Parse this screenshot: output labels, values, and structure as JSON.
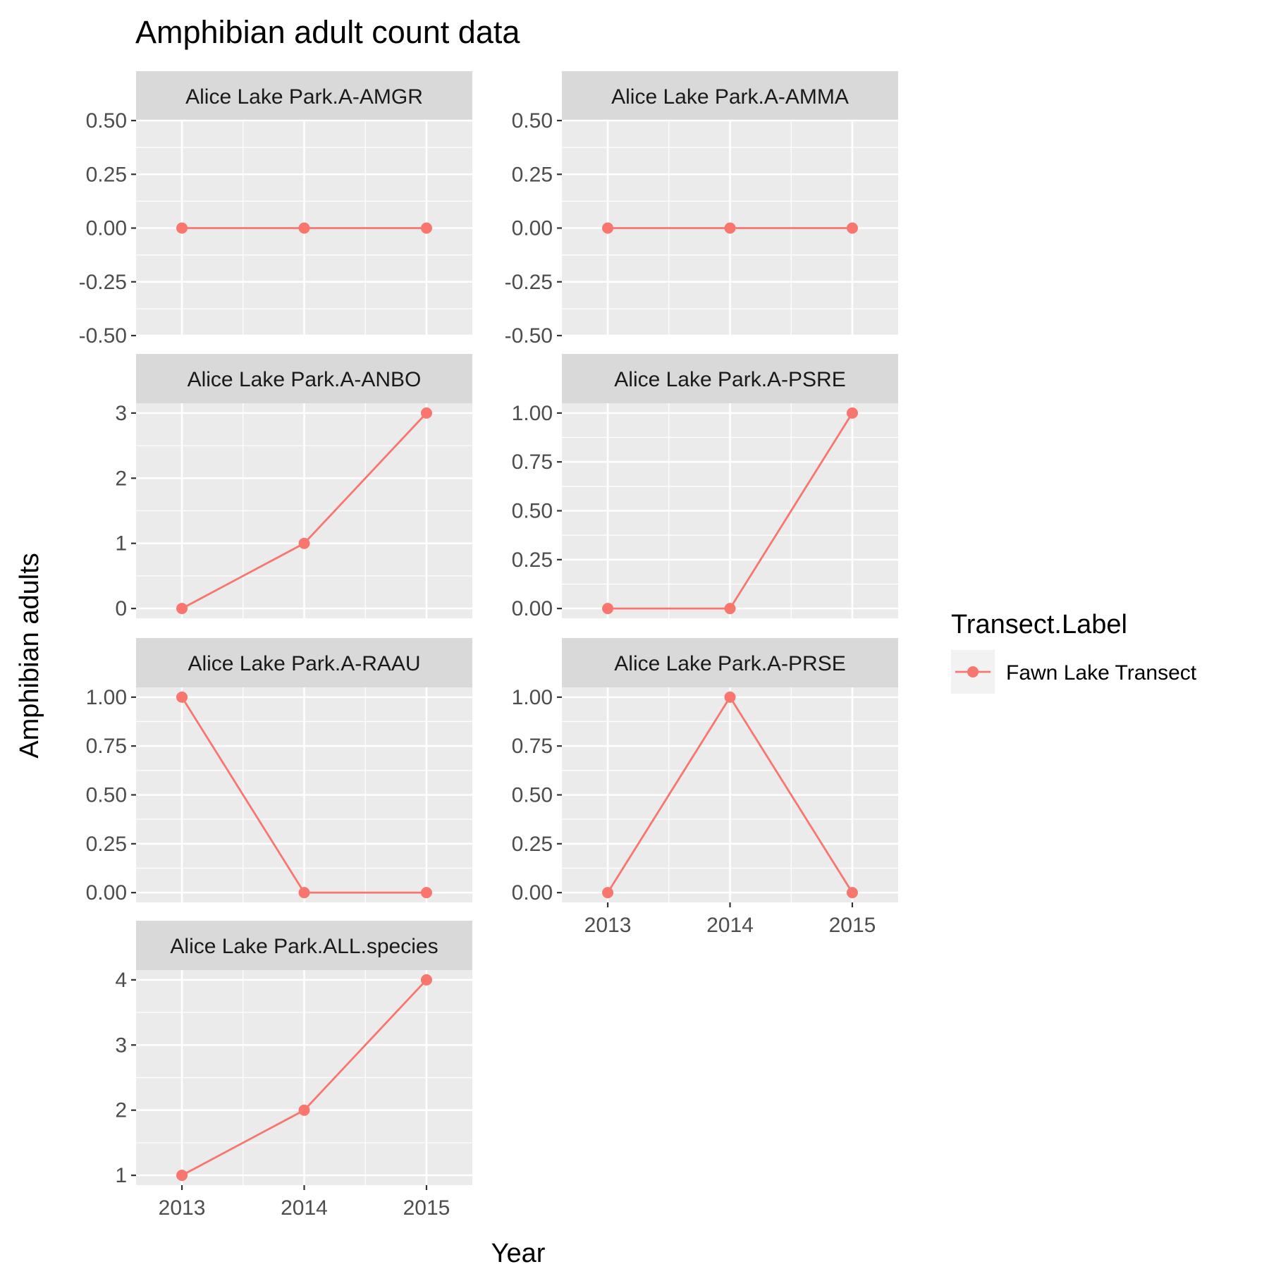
{
  "title": "Amphibian adult count data",
  "xlabel": "Year",
  "ylabel": "Amphibian adults",
  "legend": {
    "title": "Transect.Label",
    "entries": [
      {
        "label": "Fawn Lake Transect",
        "color": "#F8766D"
      }
    ],
    "position": "right"
  },
  "chart_data": {
    "type": "line",
    "facet_layout": {
      "columns": 2,
      "rows": 4
    },
    "x": [
      2013,
      2014,
      2015
    ],
    "x_tick_labels": [
      "2013",
      "2014",
      "2015"
    ],
    "series_name": "Fawn Lake Transect",
    "series_color": "#F8766D",
    "grid": true,
    "panels": [
      {
        "strip": "Alice Lake Park.A-AMGR",
        "values": [
          0,
          0,
          0
        ],
        "ylim": [
          -0.5,
          0.5
        ],
        "y_ticks": [
          -0.5,
          -0.25,
          0,
          0.25,
          0.5
        ],
        "y_tick_labels": [
          "-0.50",
          "-0.25",
          "0.00",
          "0.25",
          "0.50"
        ]
      },
      {
        "strip": "Alice Lake Park.A-AMMA",
        "values": [
          0,
          0,
          0
        ],
        "ylim": [
          -0.5,
          0.5
        ],
        "y_ticks": [
          -0.5,
          -0.25,
          0,
          0.25,
          0.5
        ],
        "y_tick_labels": [
          "-0.50",
          "-0.25",
          "0.00",
          "0.25",
          "0.50"
        ]
      },
      {
        "strip": "Alice Lake Park.A-ANBO",
        "values": [
          0,
          1,
          3
        ],
        "ylim": [
          -0.15,
          3.15
        ],
        "y_ticks": [
          0,
          1,
          2,
          3
        ],
        "y_tick_labels": [
          "0",
          "1",
          "2",
          "3"
        ]
      },
      {
        "strip": "Alice Lake Park.A-PSRE",
        "values": [
          0,
          0,
          1
        ],
        "ylim": [
          -0.05,
          1.05
        ],
        "y_ticks": [
          0,
          0.25,
          0.5,
          0.75,
          1
        ],
        "y_tick_labels": [
          "0.00",
          "0.25",
          "0.50",
          "0.75",
          "1.00"
        ]
      },
      {
        "strip": "Alice Lake Park.A-RAAU",
        "values": [
          1,
          0,
          0
        ],
        "ylim": [
          -0.05,
          1.05
        ],
        "y_ticks": [
          0,
          0.25,
          0.5,
          0.75,
          1
        ],
        "y_tick_labels": [
          "0.00",
          "0.25",
          "0.50",
          "0.75",
          "1.00"
        ]
      },
      {
        "strip": "Alice Lake Park.A-PRSE",
        "values": [
          0,
          1,
          0
        ],
        "ylim": [
          -0.05,
          1.05
        ],
        "y_ticks": [
          0,
          0.25,
          0.5,
          0.75,
          1
        ],
        "y_tick_labels": [
          "0.00",
          "0.25",
          "0.50",
          "0.75",
          "1.00"
        ]
      },
      {
        "strip": "Alice Lake Park.ALL.species",
        "values": [
          1,
          2,
          4
        ],
        "ylim": [
          0.85,
          4.15
        ],
        "y_ticks": [
          1,
          2,
          3,
          4
        ],
        "y_tick_labels": [
          "1",
          "2",
          "3",
          "4"
        ]
      }
    ]
  }
}
